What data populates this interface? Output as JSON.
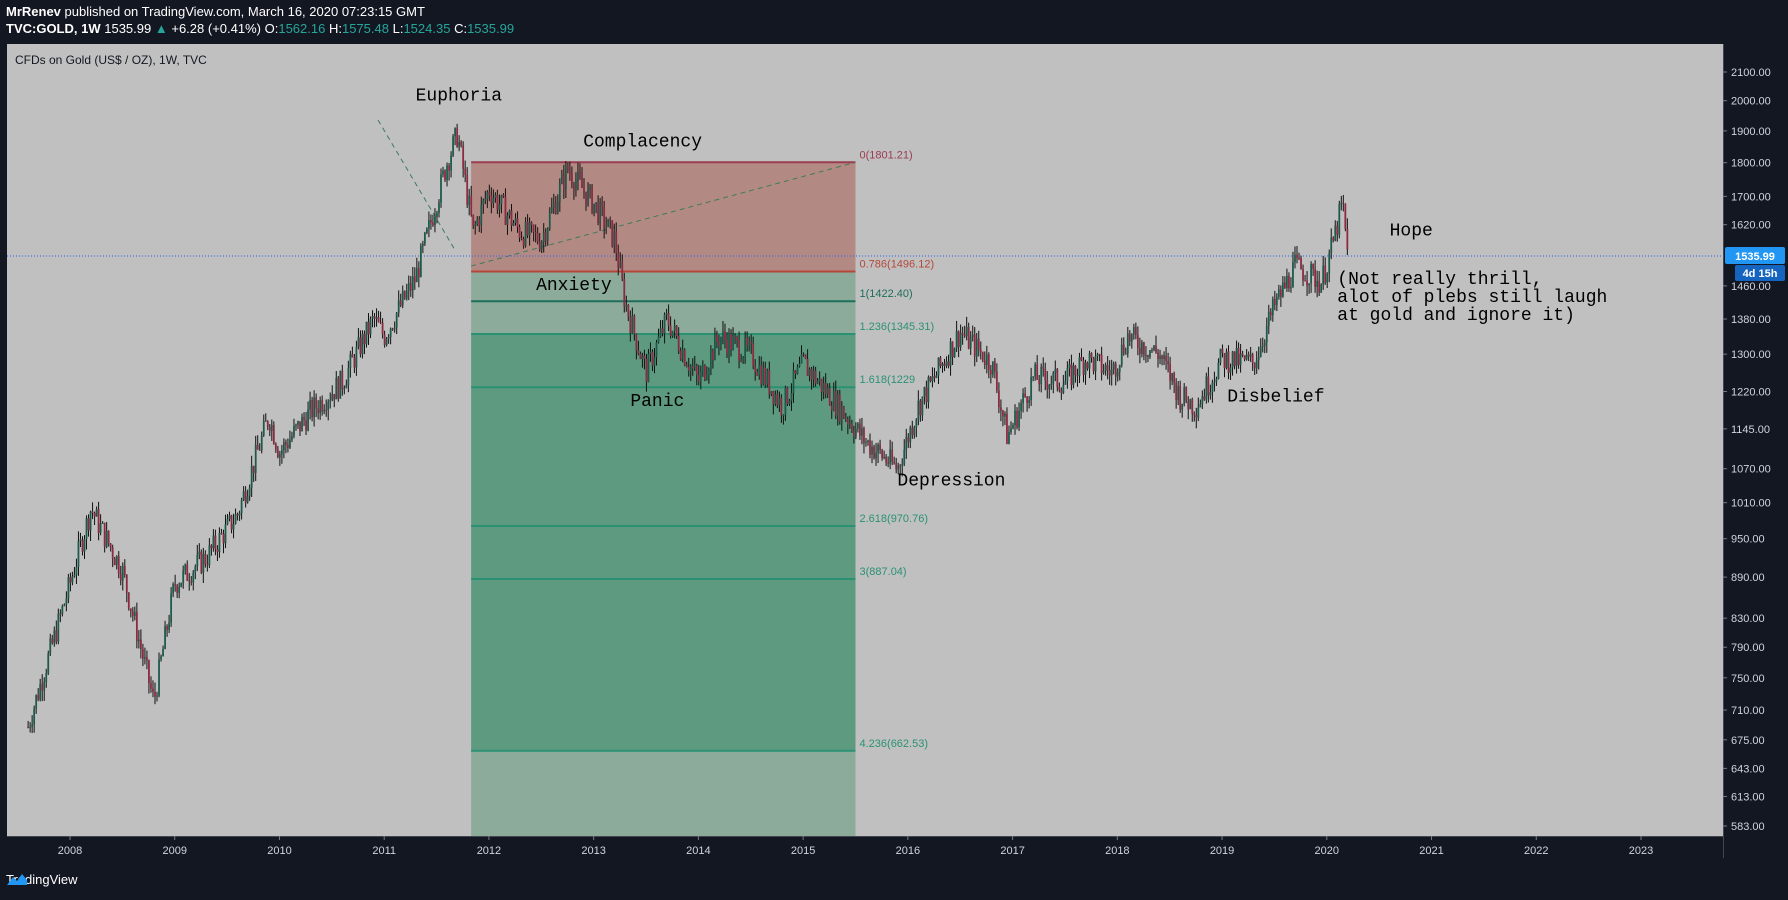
{
  "header": {
    "author": "MrRenev",
    "published": "published on TradingView.com, March 16, 2020 07:23:15 GMT",
    "symbol": "TVC:GOLD, 1W",
    "last": "1535.99",
    "change": "+6.28 (+0.41%)",
    "o_label": "O:",
    "o": "1562.16",
    "h_label": "H:",
    "h": "1575.48",
    "l_label": "L:",
    "l": "1524.35",
    "c_label": "C:",
    "c": "1535.99"
  },
  "footer": {
    "brand": "TradingView"
  },
  "colors": {
    "plot_bg": "#c0c0c0",
    "frame": "#131722",
    "fib_red": "#b38a83",
    "fib_gray": "#8cab9b",
    "fib_green": "#5e9a7f",
    "price_line": "#2962ff",
    "price_tag": "#2196f3"
  },
  "chart_data": {
    "type": "candlestick",
    "title": "CFDs on Gold (US$ / OZ), 1W, TVC",
    "x_ticks": [
      "2008",
      "2009",
      "2010",
      "2011",
      "2012",
      "2013",
      "2014",
      "2015",
      "2016",
      "2017",
      "2018",
      "2019",
      "2020",
      "2021",
      "2022",
      "2023"
    ],
    "y_ticks": [
      "2100.00",
      "2000.00",
      "1900.00",
      "1800.00",
      "1700.00",
      "1620.00",
      "1460.00",
      "1380.00",
      "1300.00",
      "1220.00",
      "1145.00",
      "1070.00",
      "1010.00",
      "950.00",
      "890.00",
      "830.00",
      "790.00",
      "750.00",
      "710.00",
      "675.00",
      "643.00",
      "613.00",
      "583.00"
    ],
    "y_scale": "log",
    "current_price": "1535.99",
    "countdown": "4d 15h",
    "price_path": [
      [
        2007.6,
        690
      ],
      [
        2008.0,
        880
      ],
      [
        2008.2,
        1000
      ],
      [
        2008.5,
        900
      ],
      [
        2008.8,
        720
      ],
      [
        2009.0,
        880
      ],
      [
        2009.3,
        920
      ],
      [
        2009.6,
        990
      ],
      [
        2009.9,
        1170
      ],
      [
        2010.0,
        1100
      ],
      [
        2010.3,
        1180
      ],
      [
        2010.6,
        1240
      ],
      [
        2010.9,
        1380
      ],
      [
        2011.0,
        1340
      ],
      [
        2011.3,
        1480
      ],
      [
        2011.6,
        1800
      ],
      [
        2011.7,
        1890
      ],
      [
        2011.85,
        1600
      ],
      [
        2012.0,
        1720
      ],
      [
        2012.3,
        1600
      ],
      [
        2012.5,
        1580
      ],
      [
        2012.75,
        1780
      ],
      [
        2013.0,
        1680
      ],
      [
        2013.2,
        1580
      ],
      [
        2013.3,
        1420
      ],
      [
        2013.5,
        1260
      ],
      [
        2013.7,
        1380
      ],
      [
        2014.0,
        1240
      ],
      [
        2014.2,
        1340
      ],
      [
        2014.5,
        1300
      ],
      [
        2014.8,
        1190
      ],
      [
        2015.0,
        1280
      ],
      [
        2015.3,
        1200
      ],
      [
        2015.6,
        1120
      ],
      [
        2015.9,
        1070
      ],
      [
        2016.1,
        1190
      ],
      [
        2016.5,
        1350
      ],
      [
        2016.8,
        1280
      ],
      [
        2016.95,
        1130
      ],
      [
        2017.2,
        1250
      ],
      [
        2017.5,
        1240
      ],
      [
        2017.7,
        1290
      ],
      [
        2017.95,
        1260
      ],
      [
        2018.1,
        1340
      ],
      [
        2018.4,
        1300
      ],
      [
        2018.6,
        1210
      ],
      [
        2018.75,
        1190
      ],
      [
        2019.0,
        1290
      ],
      [
        2019.3,
        1280
      ],
      [
        2019.5,
        1410
      ],
      [
        2019.7,
        1510
      ],
      [
        2019.95,
        1470
      ],
      [
        2020.05,
        1560
      ],
      [
        2020.15,
        1680
      ],
      [
        2020.2,
        1535
      ]
    ],
    "fib_retracement": {
      "from_year": 2011.83,
      "to_year": 2015.5,
      "levels": [
        {
          "ratio": "0",
          "price": 1801.21,
          "label": "0(1801.21)",
          "color": "#9b3c4f"
        },
        {
          "ratio": "0.786",
          "price": 1496.12,
          "label": "0.786(1496.12)",
          "color": "#b5473a"
        },
        {
          "ratio": "1",
          "price": 1422.4,
          "label": "1(1422.40)",
          "color": "#1e6e5a"
        },
        {
          "ratio": "1.236",
          "price": 1345.31,
          "label": "1.236(1345.31)",
          "color": "#2b9173"
        },
        {
          "ratio": "1.618",
          "price": 1229,
          "label": "1.618(1229",
          "color": "#2b9173"
        },
        {
          "ratio": "2.618",
          "price": 970.76,
          "label": "2.618(970.76)",
          "color": "#2b9173"
        },
        {
          "ratio": "3",
          "price": 887.04,
          "label": "3(887.04)",
          "color": "#2b9173"
        },
        {
          "ratio": "4.236",
          "price": 662.53,
          "label": "4.236(662.53)",
          "color": "#2b9173"
        }
      ]
    },
    "annotations": [
      {
        "text": "Euphoria",
        "year": 2011.3,
        "price": 2000
      },
      {
        "text": "Complacency",
        "year": 2012.9,
        "price": 1850
      },
      {
        "text": "Anxiety",
        "year": 2012.45,
        "price": 1450
      },
      {
        "text": "Panic",
        "year": 2013.35,
        "price": 1190
      },
      {
        "text": "Depression",
        "year": 2015.9,
        "price": 1040
      },
      {
        "text": "Disbelief",
        "year": 2019.05,
        "price": 1200
      },
      {
        "text": "Hope",
        "year": 2020.6,
        "price": 1590
      },
      {
        "text": "(Not really thrill,",
        "year": 2020.1,
        "price": 1465
      },
      {
        "text": "alot of plebs still laugh",
        "year": 2020.1,
        "price": 1420
      },
      {
        "text": "at gold and ignore it)",
        "year": 2020.1,
        "price": 1378
      }
    ]
  }
}
